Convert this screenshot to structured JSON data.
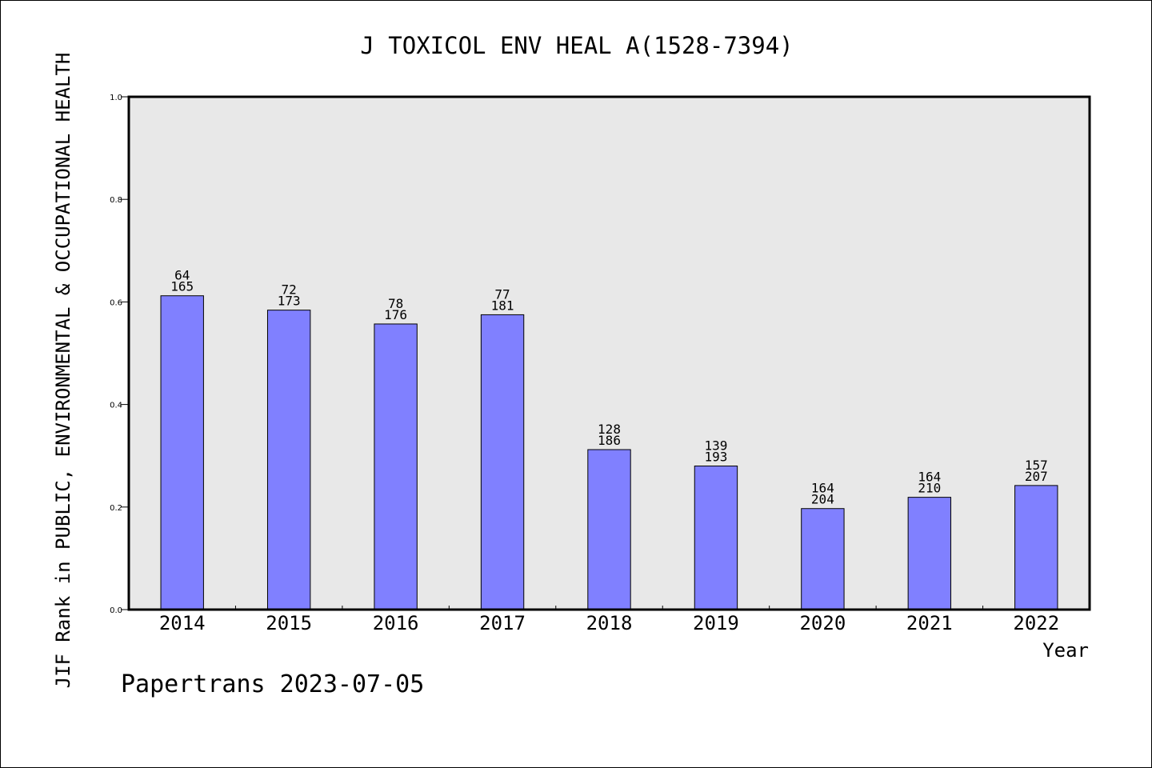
{
  "chart_data": {
    "type": "bar",
    "title": "J TOXICOL ENV HEAL A(1528-7394)",
    "xlabel": "Year",
    "ylabel": "JIF Rank in PUBLIC, ENVIRONMENTAL & OCCUPATIONAL HEALTH",
    "ylim": [
      0.0,
      1.0
    ],
    "yticks": [
      "0.0",
      "0.2",
      "0.4",
      "0.6",
      "0.8",
      "1.0"
    ],
    "categories": [
      "2014",
      "2015",
      "2016",
      "2017",
      "2018",
      "2019",
      "2020",
      "2021",
      "2022"
    ],
    "values": [
      0.612,
      0.584,
      0.557,
      0.575,
      0.312,
      0.28,
      0.197,
      0.219,
      0.242
    ],
    "rank": [
      "64",
      "72",
      "78",
      "77",
      "128",
      "139",
      "164",
      "164",
      "157"
    ],
    "total": [
      "165",
      "173",
      "176",
      "181",
      "186",
      "193",
      "204",
      "210",
      "207"
    ],
    "grid": false,
    "colors": {
      "bar": "#8080ff",
      "plot_bg": "#e8e8e8",
      "frame": "#000000"
    }
  },
  "footer": {
    "credit": "Papertrans 2023-07-05"
  }
}
